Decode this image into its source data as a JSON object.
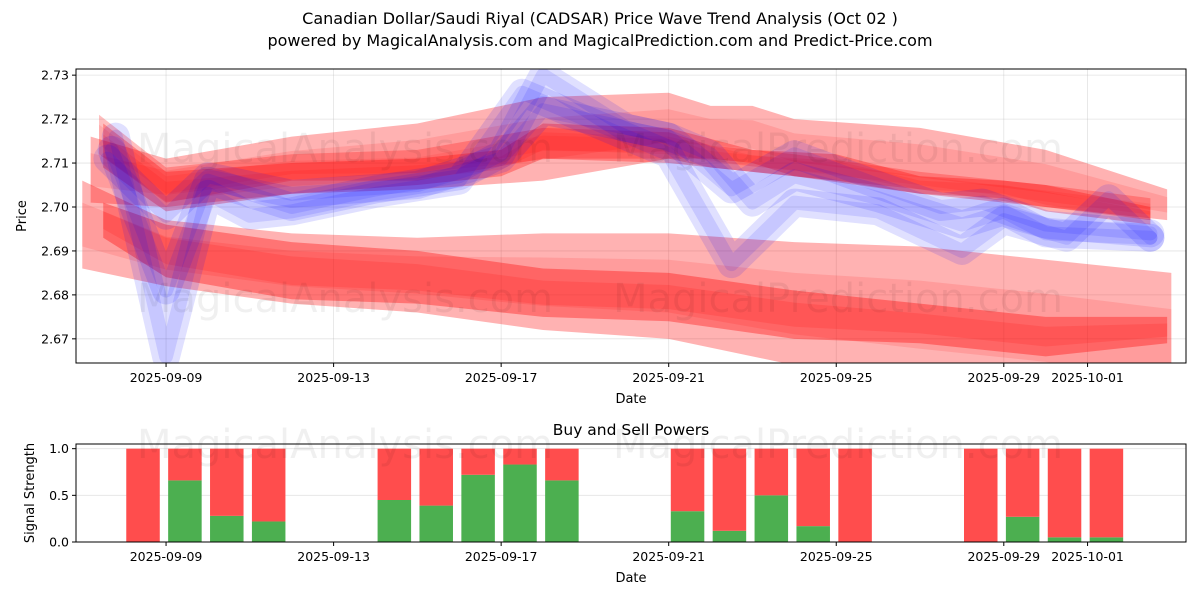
{
  "title_line1": "Canadian Dollar/Saudi Riyal (CADSAR) Price Wave Trend Analysis (Oct 02 )",
  "title_line2": "powered by MagicalAnalysis.com and MagicalPrediction.com and Predict-Price.com",
  "watermarks": [
    "MagicalAnalysis.com",
    "MagicalPrediction.com"
  ],
  "colors": {
    "red_band": "#ff0000",
    "blue_band": "#0000ff",
    "buy": "#4caf50",
    "sell": "#ff4d4d"
  },
  "chart_data": [
    {
      "type": "area",
      "title": "Price Wave Trend",
      "xlabel": "Date",
      "ylabel": "Price",
      "ylim": [
        2.6645,
        2.7314
      ],
      "xlim": [
        "2025-09-06.85",
        "2025-10-03.35"
      ],
      "x_ticks": [
        "2025-09-09",
        "2025-09-13",
        "2025-09-17",
        "2025-09-21",
        "2025-09-25",
        "2025-09-29",
        "2025-10-01"
      ],
      "y_ticks": [
        "2.67",
        "2.68",
        "2.69",
        "2.70",
        "2.71",
        "2.72",
        "2.73"
      ],
      "grid": true,
      "series": [
        {
          "name": "red-band-upper-wide",
          "color": "red",
          "opacity": 0.3,
          "x": [
            -1.8,
            0,
            3,
            6,
            9,
            12,
            13,
            14,
            15,
            18,
            21,
            23.9
          ],
          "lower": [
            2.701,
            2.7,
            2.703,
            2.704,
            2.706,
            2.711,
            2.711,
            2.71,
            2.707,
            2.703,
            2.7,
            2.697
          ],
          "upper": [
            2.716,
            2.711,
            2.716,
            2.719,
            2.725,
            2.726,
            2.723,
            2.723,
            2.72,
            2.718,
            2.713,
            2.704
          ]
        },
        {
          "name": "red-band-upper-core",
          "color": "red",
          "opacity": 0.3,
          "x": [
            -1.5,
            0,
            3,
            6,
            8,
            9,
            12,
            14,
            16,
            18,
            20,
            21,
            23.5
          ],
          "lower": [
            2.709,
            2.699,
            2.703,
            2.705,
            2.707,
            2.711,
            2.71,
            2.708,
            2.706,
            2.703,
            2.702,
            2.699,
            2.696
          ],
          "upper": [
            2.719,
            2.708,
            2.71,
            2.711,
            2.713,
            2.719,
            2.718,
            2.713,
            2.712,
            2.707,
            2.706,
            2.705,
            2.7
          ]
        },
        {
          "name": "red-band-upper-thin",
          "color": "red",
          "opacity": 0.25,
          "x": [
            -1.6,
            0,
            3,
            6,
            9,
            12,
            13,
            15,
            18,
            21,
            23.5
          ],
          "lower": [
            2.712,
            2.701,
            2.706,
            2.706,
            2.711,
            2.711,
            2.709,
            2.707,
            2.704,
            2.7,
            2.697
          ],
          "upper": [
            2.721,
            2.709,
            2.712,
            2.713,
            2.718,
            2.717,
            2.714,
            2.712,
            2.708,
            2.705,
            2.702
          ]
        },
        {
          "name": "red-band-lower-wide",
          "color": "red",
          "opacity": 0.3,
          "x": [
            -2.0,
            0,
            3,
            6,
            9,
            12,
            15,
            18,
            21,
            24.0
          ],
          "lower": [
            2.686,
            2.682,
            2.678,
            2.676,
            2.672,
            2.67,
            2.664,
            2.66,
            2.657,
            2.652
          ],
          "upper": [
            2.706,
            2.697,
            2.694,
            2.693,
            2.694,
            2.694,
            2.692,
            2.691,
            2.688,
            2.685
          ]
        },
        {
          "name": "red-band-lower-core",
          "color": "red",
          "opacity": 0.35,
          "x": [
            -1.5,
            0,
            3,
            6,
            9,
            12,
            15,
            18,
            21,
            23.9
          ],
          "lower": [
            2.693,
            2.684,
            2.679,
            2.678,
            2.675,
            2.674,
            2.67,
            2.669,
            2.666,
            2.669
          ],
          "upper": [
            2.701,
            2.696,
            2.692,
            2.69,
            2.686,
            2.685,
            2.681,
            2.678,
            2.675,
            2.675
          ]
        },
        {
          "name": "blue-wave-1",
          "color": "blue",
          "opacity": 0.12,
          "x": [
            -1.2,
            0,
            1,
            2,
            3,
            5,
            7,
            8.5,
            10,
            12,
            13.5,
            15,
            17,
            19,
            20,
            21.5,
            22.5,
            23.5
          ],
          "center": [
            2.716,
            2.666,
            2.703,
            2.698,
            2.699,
            2.703,
            2.706,
            2.726,
            2.72,
            2.712,
            2.687,
            2.701,
            2.699,
            2.69,
            2.697,
            2.693,
            2.702,
            2.693
          ]
        },
        {
          "name": "blue-wave-2",
          "color": "blue",
          "opacity": 0.12,
          "x": [
            -1.3,
            0,
            1,
            3,
            5,
            7,
            8,
            9,
            11,
            12,
            13,
            14,
            15,
            17,
            19,
            20,
            21,
            23.5
          ],
          "center": [
            2.713,
            2.681,
            2.706,
            2.7,
            2.704,
            2.707,
            2.712,
            2.73,
            2.718,
            2.716,
            2.712,
            2.701,
            2.707,
            2.702,
            2.696,
            2.699,
            2.694,
            2.693
          ]
        },
        {
          "name": "blue-wave-3",
          "color": "blue",
          "opacity": 0.12,
          "x": [
            -1.4,
            0,
            1,
            3,
            6,
            8,
            9,
            12,
            13.5,
            15,
            17,
            18.5,
            19.5,
            21,
            23.5
          ],
          "center": [
            2.711,
            2.698,
            2.707,
            2.703,
            2.705,
            2.711,
            2.722,
            2.716,
            2.704,
            2.712,
            2.705,
            2.7,
            2.701,
            2.696,
            2.694
          ]
        }
      ]
    },
    {
      "type": "bar",
      "title": "Buy and Sell Powers",
      "xlabel": "Date",
      "ylabel": "Signal Strength",
      "ylim": [
        0,
        1.05
      ],
      "y_ticks": [
        "0.0",
        "0.5",
        "1.0"
      ],
      "x_ticks": [
        "2025-09-09",
        "2025-09-13",
        "2025-09-17",
        "2025-09-21",
        "2025-09-25",
        "2025-09-29",
        "2025-10-01"
      ],
      "grid": true,
      "categories": [
        "2025-09-08",
        "2025-09-09",
        "2025-09-10",
        "2025-09-11",
        "2025-09-14",
        "2025-09-15",
        "2025-09-16",
        "2025-09-17",
        "2025-09-18",
        "2025-09-21",
        "2025-09-22",
        "2025-09-23",
        "2025-09-24",
        "2025-09-25",
        "2025-09-28",
        "2025-09-29",
        "2025-09-30",
        "2025-10-01"
      ],
      "series": [
        {
          "name": "Buy",
          "values": [
            0.0,
            0.66,
            0.28,
            0.22,
            0.45,
            0.39,
            0.72,
            0.83,
            0.66,
            0.33,
            0.12,
            0.5,
            0.17,
            0.0,
            0.0,
            0.27,
            0.05,
            0.05
          ]
        },
        {
          "name": "Sell",
          "values": [
            1.0,
            0.34,
            0.72,
            0.78,
            0.55,
            0.61,
            0.28,
            0.17,
            0.34,
            0.67,
            0.88,
            0.5,
            0.83,
            1.0,
            1.0,
            0.73,
            0.95,
            0.95
          ]
        }
      ]
    }
  ]
}
